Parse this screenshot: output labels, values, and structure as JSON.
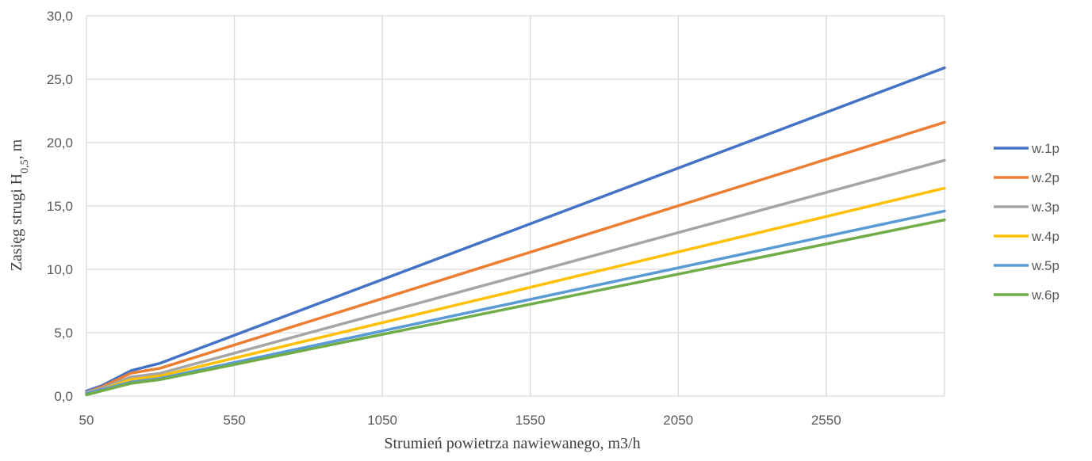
{
  "chart_data": {
    "type": "line",
    "title": "",
    "xlabel": "Strumień powietrza nawiewanego, m3/h",
    "ylabel": {
      "main": "Zasięg strugi H",
      "sub": "0,5",
      "suffix": ", m"
    },
    "xlim": [
      50,
      2950
    ],
    "ylim": [
      0,
      30
    ],
    "x_ticks": [
      50,
      550,
      1050,
      1550,
      2050,
      2550
    ],
    "x_tick_labels": [
      "50",
      "550",
      "1050",
      "1550",
      "2050",
      "2550"
    ],
    "y_ticks": [
      0,
      5,
      10,
      15,
      20,
      25,
      30
    ],
    "y_tick_labels": [
      "0,0",
      "5,0",
      "10,0",
      "15,0",
      "20,0",
      "25,0",
      "30,0"
    ],
    "grid": true,
    "legend_position": "right",
    "x": [
      50,
      100,
      200,
      300,
      2950
    ],
    "series": [
      {
        "name": "w.1p",
        "color": "#4472C4",
        "values": [
          0.4,
          0.8,
          2.0,
          2.6,
          25.9
        ]
      },
      {
        "name": "w.2p",
        "color": "#ED7D31",
        "values": [
          0.3,
          0.7,
          1.8,
          2.2,
          21.6
        ]
      },
      {
        "name": "w.3p",
        "color": "#A5A5A5",
        "values": [
          0.3,
          0.6,
          1.5,
          1.8,
          18.6
        ]
      },
      {
        "name": "w.4p",
        "color": "#FFC000",
        "values": [
          0.2,
          0.5,
          1.3,
          1.6,
          16.4
        ]
      },
      {
        "name": "w.5p",
        "color": "#5B9BD5",
        "values": [
          0.2,
          0.5,
          1.1,
          1.4,
          14.6
        ]
      },
      {
        "name": "w.6p",
        "color": "#70AD47",
        "values": [
          0.1,
          0.4,
          1.0,
          1.3,
          13.9
        ]
      }
    ]
  }
}
